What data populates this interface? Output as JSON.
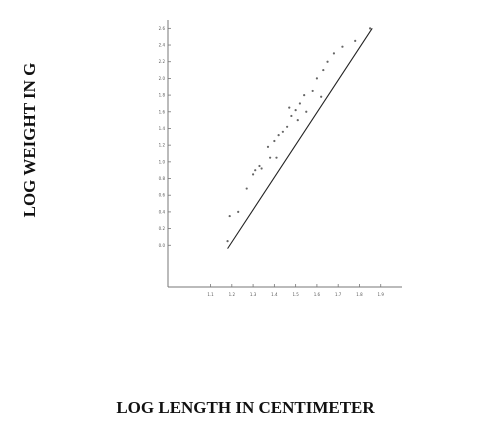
{
  "chart_data": {
    "type": "scatter",
    "title": "",
    "xlabel": "LOG LENGTH IN CENTIMETER",
    "ylabel": "LOG WEIGHT IN G",
    "xlim": [
      0.9,
      2.0
    ],
    "ylim": [
      -0.5,
      2.7
    ],
    "x_ticks": [
      "1.1",
      "1.2",
      "1.3",
      "1.4",
      "1.5",
      "1.6",
      "1.7",
      "1.8",
      "1.9"
    ],
    "y_ticks": [
      "0.0",
      "0.2",
      "0.4",
      "0.6",
      "0.8",
      "1.0",
      "1.2",
      "1.4",
      "1.6",
      "1.8",
      "2.0",
      "2.2",
      "2.4",
      "2.6"
    ],
    "grid": false,
    "legend": "none",
    "regression_line": {
      "x": [
        1.18,
        1.86
      ],
      "y": [
        -0.04,
        2.6
      ]
    },
    "points": [
      {
        "x": 1.18,
        "y": 0.05
      },
      {
        "x": 1.19,
        "y": 0.35
      },
      {
        "x": 1.23,
        "y": 0.4
      },
      {
        "x": 1.27,
        "y": 0.68
      },
      {
        "x": 1.3,
        "y": 0.85
      },
      {
        "x": 1.31,
        "y": 0.9
      },
      {
        "x": 1.33,
        "y": 0.95
      },
      {
        "x": 1.34,
        "y": 0.92
      },
      {
        "x": 1.38,
        "y": 1.05
      },
      {
        "x": 1.37,
        "y": 1.18
      },
      {
        "x": 1.4,
        "y": 1.25
      },
      {
        "x": 1.42,
        "y": 1.32
      },
      {
        "x": 1.41,
        "y": 1.05
      },
      {
        "x": 1.44,
        "y": 1.36
      },
      {
        "x": 1.46,
        "y": 1.42
      },
      {
        "x": 1.48,
        "y": 1.55
      },
      {
        "x": 1.47,
        "y": 1.65
      },
      {
        "x": 1.5,
        "y": 1.62
      },
      {
        "x": 1.52,
        "y": 1.7
      },
      {
        "x": 1.54,
        "y": 1.8
      },
      {
        "x": 1.51,
        "y": 1.5
      },
      {
        "x": 1.55,
        "y": 1.6
      },
      {
        "x": 1.58,
        "y": 1.85
      },
      {
        "x": 1.6,
        "y": 2.0
      },
      {
        "x": 1.63,
        "y": 2.1
      },
      {
        "x": 1.65,
        "y": 2.2
      },
      {
        "x": 1.62,
        "y": 1.78
      },
      {
        "x": 1.68,
        "y": 2.3
      },
      {
        "x": 1.72,
        "y": 2.38
      },
      {
        "x": 1.78,
        "y": 2.45
      },
      {
        "x": 1.85,
        "y": 2.6
      }
    ],
    "colors": {
      "axis": "#777777",
      "line": "#222222",
      "point": "#666666"
    }
  }
}
